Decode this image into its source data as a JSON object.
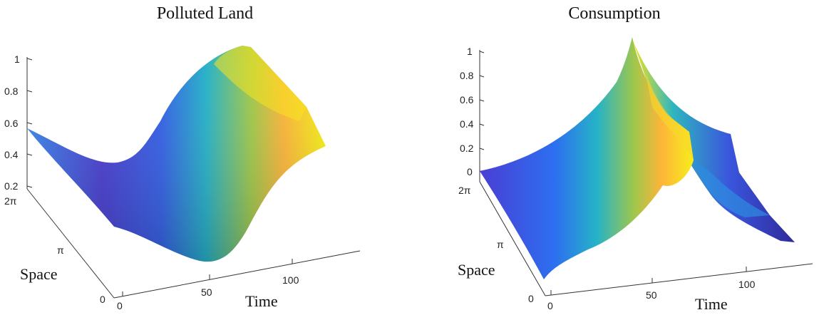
{
  "chart_data": [
    {
      "type": "surface",
      "title": "Polluted Land",
      "xlabel": "Time",
      "ylabel": "Space",
      "zlabel": "",
      "x_ticks": [
        "0",
        "50",
        "100"
      ],
      "y_ticks": [
        "0",
        "π",
        "2π"
      ],
      "z_ticks": [
        "0.2",
        "0.4",
        "0.6",
        "0.8",
        "1"
      ],
      "xlim": [
        0,
        130
      ],
      "zlim": [
        0.2,
        1
      ],
      "colormap": "parula",
      "colors": [
        "#3e26a8",
        "#2d6ff0",
        "#2aaad1",
        "#2bc0a0",
        "#a1c64a",
        "#fdb52f",
        "#f9fb15"
      ],
      "grid": false,
      "legend": "none"
    },
    {
      "type": "surface",
      "title": "Consumption",
      "xlabel": "Time",
      "ylabel": "Space",
      "zlabel": "",
      "x_ticks": [
        "0",
        "50",
        "100"
      ],
      "y_ticks": [
        "0",
        "π",
        "2π"
      ],
      "z_ticks": [
        "0",
        "0.2",
        "0.4",
        "0.6",
        "0.8",
        "1"
      ],
      "xlim": [
        0,
        130
      ],
      "zlim": [
        0,
        1
      ],
      "colormap": "parula",
      "colors": [
        "#3e26a8",
        "#2d6ff0",
        "#2aaad1",
        "#2bc0a0",
        "#a1c64a",
        "#fdb52f",
        "#f9fb15"
      ],
      "grid": false,
      "legend": "none"
    }
  ]
}
